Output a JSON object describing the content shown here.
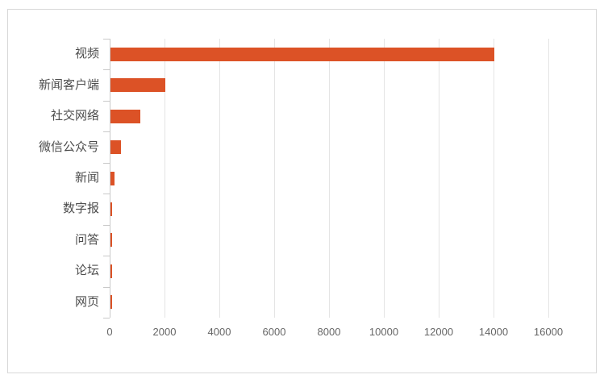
{
  "chart_data": {
    "type": "bar",
    "orientation": "horizontal",
    "title": "",
    "xlabel": "",
    "ylabel": "",
    "categories": [
      "视频",
      "新闻客户端",
      "社交网络",
      "微信公众号",
      "新闻",
      "数字报",
      "问答",
      "论坛",
      "网页"
    ],
    "values": [
      14000,
      2000,
      1100,
      380,
      150,
      60,
      55,
      50,
      45
    ],
    "xlim": [
      0,
      16000
    ],
    "x_ticks": [
      0,
      2000,
      4000,
      6000,
      8000,
      10000,
      12000,
      14000,
      16000
    ],
    "grid": true,
    "legend": false
  },
  "colors": {
    "bar": "#DC5226",
    "gridline": "#E4E4E4",
    "axis_line": "#C9C9C9",
    "tick_label": "#666666",
    "category_label": "#4D4D4D",
    "frame_border": "#D8D8D8",
    "background": "#FFFFFF"
  }
}
